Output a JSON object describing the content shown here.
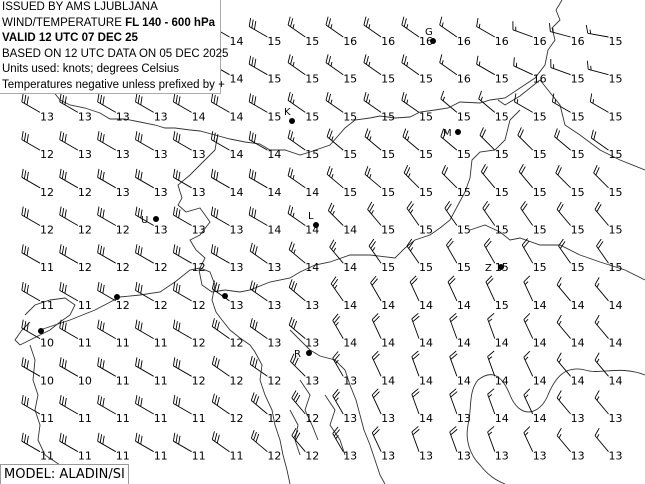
{
  "header": {
    "line1": "ISSUED BY AMS LJUBLJANA",
    "line2_prefix": "WIND/TEMPERATURE ",
    "line2_bold": "FL 140 - 600 hPa",
    "line3": "VALID 12 UTC 07 DEC 25",
    "line4": "BASED ON 12 UTC DATA ON 05 DEC 2025",
    "line5": "Units used: knots; degrees Celsius",
    "line6": "Temperatures negative unless prefixed by +"
  },
  "model_label": "MODEL: ALADIN/SI",
  "colors": {
    "ink": "#000000",
    "boundary": "#333333",
    "box_border": "#aaaaaa"
  },
  "temperature_grid": [
    [
      null,
      null,
      null,
      null,
      null,
      14,
      15,
      15,
      16,
      16,
      16,
      16,
      16,
      16,
      16,
      15
    ],
    [
      null,
      null,
      null,
      null,
      null,
      14,
      15,
      15,
      15,
      15,
      15,
      16,
      15,
      16,
      15,
      15
    ],
    [
      13,
      13,
      13,
      13,
      14,
      14,
      15,
      15,
      15,
      15,
      15,
      15,
      15,
      15,
      15,
      15
    ],
    [
      12,
      13,
      13,
      13,
      13,
      14,
      14,
      15,
      15,
      15,
      15,
      15,
      15,
      15,
      15,
      15
    ],
    [
      12,
      12,
      13,
      13,
      13,
      14,
      14,
      14,
      15,
      15,
      15,
      15,
      15,
      15,
      15,
      15
    ],
    [
      12,
      12,
      12,
      13,
      13,
      13,
      14,
      14,
      14,
      15,
      15,
      15,
      15,
      15,
      15,
      15
    ],
    [
      11,
      12,
      12,
      12,
      12,
      13,
      13,
      14,
      14,
      15,
      15,
      15,
      15,
      15,
      15,
      15
    ],
    [
      11,
      11,
      12,
      12,
      12,
      13,
      13,
      13,
      14,
      14,
      14,
      14,
      15,
      14,
      14,
      14
    ],
    [
      10,
      11,
      11,
      11,
      12,
      12,
      13,
      13,
      14,
      14,
      14,
      14,
      14,
      14,
      14,
      14
    ],
    [
      10,
      10,
      11,
      11,
      12,
      12,
      12,
      13,
      13,
      14,
      14,
      14,
      14,
      14,
      14,
      14
    ],
    [
      11,
      11,
      11,
      11,
      11,
      12,
      12,
      12,
      13,
      13,
      14,
      13,
      14,
      14,
      13,
      13
    ],
    [
      11,
      11,
      11,
      11,
      11,
      11,
      12,
      12,
      13,
      13,
      13,
      13,
      13,
      13,
      13,
      13
    ]
  ],
  "wind_direction_deg": [
    [
      300,
      300,
      300,
      300,
      300,
      300,
      300,
      305,
      305,
      305,
      305,
      305,
      300,
      290,
      285,
      280
    ],
    [
      300,
      300,
      300,
      300,
      300,
      300,
      300,
      305,
      305,
      305,
      305,
      305,
      300,
      295,
      290,
      285
    ],
    [
      300,
      300,
      300,
      300,
      300,
      300,
      300,
      305,
      305,
      305,
      305,
      310,
      310,
      300,
      300,
      300
    ],
    [
      300,
      300,
      300,
      300,
      300,
      300,
      300,
      305,
      310,
      310,
      310,
      310,
      315,
      315,
      310,
      305
    ],
    [
      300,
      300,
      300,
      300,
      300,
      300,
      300,
      305,
      310,
      310,
      315,
      315,
      320,
      320,
      315,
      315
    ],
    [
      300,
      300,
      300,
      300,
      300,
      300,
      300,
      305,
      315,
      320,
      325,
      325,
      325,
      325,
      320,
      320
    ],
    [
      300,
      300,
      300,
      300,
      300,
      300,
      305,
      310,
      320,
      325,
      325,
      330,
      330,
      330,
      325,
      325
    ],
    [
      300,
      300,
      300,
      300,
      300,
      305,
      305,
      310,
      325,
      330,
      335,
      335,
      335,
      335,
      320,
      320
    ],
    [
      300,
      300,
      300,
      300,
      300,
      305,
      305,
      310,
      330,
      335,
      340,
      340,
      340,
      335,
      320,
      320
    ],
    [
      300,
      300,
      300,
      300,
      300,
      305,
      305,
      315,
      330,
      335,
      340,
      340,
      340,
      335,
      320,
      320
    ],
    [
      300,
      300,
      300,
      300,
      300,
      305,
      310,
      320,
      330,
      335,
      340,
      340,
      340,
      335,
      320,
      320
    ],
    [
      300,
      300,
      300,
      300,
      300,
      305,
      310,
      320,
      330,
      335,
      340,
      340,
      340,
      335,
      320,
      320
    ]
  ],
  "wind_speed_kt": [
    [
      30,
      30,
      30,
      30,
      30,
      30,
      30,
      25,
      25,
      25,
      25,
      15,
      15,
      15,
      15,
      15
    ],
    [
      30,
      30,
      30,
      30,
      30,
      30,
      30,
      25,
      25,
      25,
      25,
      15,
      15,
      15,
      15,
      15
    ],
    [
      30,
      30,
      30,
      30,
      30,
      30,
      30,
      25,
      25,
      25,
      25,
      15,
      15,
      15,
      15,
      15
    ],
    [
      30,
      30,
      30,
      30,
      30,
      30,
      30,
      25,
      25,
      25,
      25,
      20,
      20,
      20,
      20,
      20
    ],
    [
      30,
      30,
      30,
      30,
      30,
      30,
      30,
      25,
      25,
      25,
      25,
      20,
      20,
      20,
      20,
      20
    ],
    [
      30,
      30,
      30,
      30,
      30,
      30,
      30,
      25,
      25,
      25,
      25,
      20,
      20,
      20,
      20,
      20
    ],
    [
      30,
      30,
      30,
      30,
      30,
      30,
      30,
      25,
      25,
      25,
      25,
      20,
      20,
      20,
      20,
      20
    ],
    [
      30,
      30,
      30,
      30,
      30,
      30,
      30,
      30,
      25,
      20,
      20,
      20,
      20,
      15,
      15,
      15
    ],
    [
      30,
      30,
      30,
      30,
      30,
      30,
      30,
      30,
      25,
      20,
      20,
      20,
      15,
      15,
      15,
      15
    ],
    [
      30,
      30,
      30,
      30,
      30,
      30,
      30,
      30,
      25,
      20,
      20,
      20,
      15,
      15,
      15,
      15
    ],
    [
      30,
      30,
      30,
      30,
      30,
      30,
      30,
      30,
      25,
      20,
      20,
      20,
      15,
      15,
      15,
      15
    ],
    [
      30,
      30,
      30,
      30,
      30,
      30,
      30,
      30,
      25,
      20,
      20,
      20,
      15,
      15,
      15,
      15
    ]
  ],
  "stations": [
    {
      "label": "G"
    },
    {
      "label": "K"
    },
    {
      "label": "M"
    },
    {
      "label": "U"
    },
    {
      "label": "L"
    },
    {
      "label": "Z"
    },
    {
      "label": "R"
    },
    {
      "label": ""
    },
    {
      "label": ""
    },
    {
      "label": ""
    }
  ]
}
